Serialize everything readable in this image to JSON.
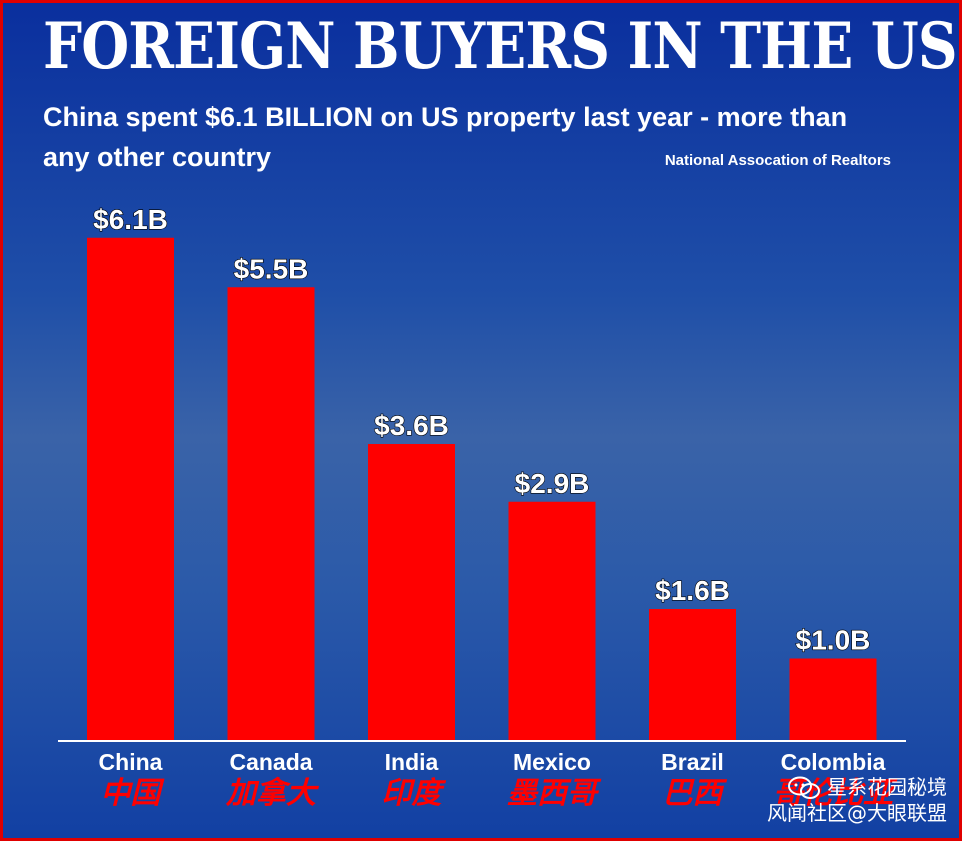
{
  "header": {
    "title": "FOREIGN BUYERS IN THE US",
    "subtitle": "China spent $6.1 BILLION on US property last year - more than any other country",
    "source": "National Assocation of Realtors"
  },
  "watermark": {
    "line1": "星系花园秘境",
    "line2": "风闻社区@大眼联盟",
    "icon": "wechat-icon"
  },
  "colors": {
    "bar": "#ff0000",
    "background": "#1a45a6",
    "chinese_label": "#ff0000"
  },
  "chart_data": {
    "type": "bar",
    "categories": [
      "China",
      "Canada",
      "India",
      "Mexico",
      "Brazil",
      "Colombia"
    ],
    "categories_chinese": [
      "中国",
      "加拿大",
      "印度",
      "墨西哥",
      "巴西",
      "哥伦比亚"
    ],
    "values": [
      6.1,
      5.5,
      3.6,
      2.9,
      1.6,
      1.0
    ],
    "data_labels": [
      "$6.1B",
      "$5.5B",
      "$3.6B",
      "$2.9B",
      "$1.6B",
      "$1.0B"
    ],
    "title": "FOREIGN BUYERS IN THE US",
    "xlabel": "",
    "ylabel": "",
    "grid": false,
    "legend": "none"
  }
}
